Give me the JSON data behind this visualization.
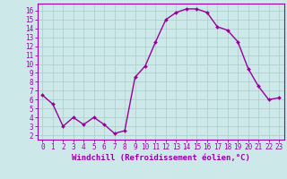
{
  "x": [
    0,
    1,
    2,
    3,
    4,
    5,
    6,
    7,
    8,
    9,
    10,
    11,
    12,
    13,
    14,
    15,
    16,
    17,
    18,
    19,
    20,
    21,
    22,
    23
  ],
  "y": [
    6.5,
    5.5,
    3.0,
    4.0,
    3.2,
    4.0,
    3.2,
    2.2,
    2.5,
    8.5,
    9.8,
    12.5,
    15.0,
    15.8,
    16.2,
    16.2,
    15.8,
    14.2,
    13.8,
    12.5,
    9.5,
    7.5,
    6.0,
    6.2
  ],
  "line_color": "#990099",
  "marker": "D",
  "marker_size": 2.0,
  "line_width": 1.0,
  "background_color": "#cce8e8",
  "grid_color": "#aacccc",
  "xlabel": "Windchill (Refroidissement éolien,°C)",
  "xlabel_fontsize": 6.5,
  "xlim": [
    -0.5,
    23.5
  ],
  "ylim": [
    1.5,
    16.8
  ],
  "yticks": [
    2,
    3,
    4,
    5,
    6,
    7,
    8,
    9,
    10,
    11,
    12,
    13,
    14,
    15,
    16
  ],
  "xticks": [
    0,
    1,
    2,
    3,
    4,
    5,
    6,
    7,
    8,
    9,
    10,
    11,
    12,
    13,
    14,
    15,
    16,
    17,
    18,
    19,
    20,
    21,
    22,
    23
  ],
  "tick_fontsize": 5.5,
  "spine_color": "#9900aa",
  "axis_label_color": "#9900aa"
}
